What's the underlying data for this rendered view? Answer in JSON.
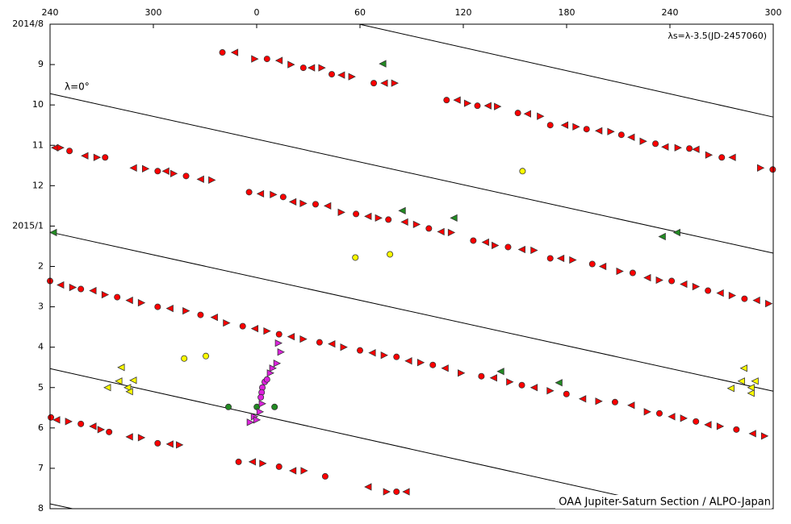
{
  "chart_data": {
    "type": "scatter",
    "annotation": "λs=λ-3.5(JD-2457060)",
    "line_label": "λ=0°",
    "credit": "OAA Jupiter-Saturn Section / ALPO-Japan",
    "xlim": [
      240,
      660
    ],
    "xticks": [
      240,
      300,
      {
        "value": 360,
        "label": "0"
      },
      {
        "value": 420,
        "label": "60"
      },
      {
        "value": 480,
        "label": "120"
      },
      {
        "value": 540,
        "label": "180"
      },
      {
        "value": 600,
        "label": "240"
      },
      {
        "value": 660,
        "label": "300"
      }
    ],
    "ylim": [
      12,
      0
    ],
    "yticks": [
      {
        "value": 0,
        "label": "2014/8"
      },
      {
        "value": 1,
        "label": "9"
      },
      {
        "value": 2,
        "label": "10"
      },
      {
        "value": 3,
        "label": "11"
      },
      {
        "value": 4,
        "label": "12"
      },
      {
        "value": 5,
        "label": "2015/1"
      },
      {
        "value": 6,
        "label": "2"
      },
      {
        "value": 7,
        "label": "3"
      },
      {
        "value": 8,
        "label": "4"
      },
      {
        "value": 9,
        "label": "5"
      },
      {
        "value": 10,
        "label": "6"
      },
      {
        "value": 11,
        "label": "7"
      },
      {
        "value": 12,
        "label": "8"
      }
    ],
    "reference_lines": [
      {
        "x": [
          419.6,
          660
        ],
        "y": [
          0,
          2.3
        ]
      },
      {
        "x": [
          240,
          660
        ],
        "y": [
          1.72,
          5.67
        ]
      },
      {
        "x": [
          240,
          660
        ],
        "y": [
          5.15,
          9.09
        ]
      },
      {
        "x": [
          240,
          604.7
        ],
        "y": [
          8.53,
          12
        ]
      },
      {
        "x": [
          240,
          253
        ],
        "y": [
          11.88,
          12
        ]
      }
    ],
    "series": [
      {
        "color": "#ff0000",
        "marker": "mixed",
        "x": [
          340.1,
          347.2,
          358.9,
          366,
          373,
          380,
          387.1,
          391.8,
          397.9,
          403.6,
          409.2,
          415.3,
          428,
          434.1,
          440.2,
          470.3,
          476.4,
          482.5,
          488.2,
          494.3,
          499.9,
          511.7,
          517.3,
          524.8,
          530.5,
          538.9,
          545.5,
          551.6,
          558.7,
          565.7,
          571.8,
          577.5,
          584.5,
          591.6,
          597.2,
          604.7,
          611.3,
          615.1,
          622.6,
          630.1,
          636.2,
          652.7,
          659.7,
          242.8,
          246.1,
          251.3,
          260.2,
          267.3,
          272,
          288.4,
          295.5,
          302.5,
          307.2,
          311.9,
          319,
          327.4,
          334,
          355.6,
          362.2,
          369.7,
          375.4,
          381,
          387.1,
          394.2,
          401.2,
          409.2,
          417.7,
          424.7,
          430.8,
          436.5,
          445.9,
          452.9,
          460,
          467,
          473.1,
          485.8,
          492.9,
          498.5,
          506,
          514,
          521.1,
          530.5,
          536.6,
          543.6,
          554.9,
          561,
          570.9,
          578.4,
          586.9,
          593.9,
          601,
          608,
          615.1,
          622.1,
          629.2,
          636.2,
          643.3,
          650.3,
          657.4,
          240,
          246.1,
          253.2,
          257.9,
          264.9,
          272,
          279,
          286.1,
          293.1,
          302.5,
          309.6,
          319,
          327.4,
          335.4,
          342.5,
          351.9,
          358.9,
          366,
          373,
          380,
          387.1,
          396.5,
          403.6,
          410.6,
          420,
          427.1,
          434.1,
          441.2,
          448.2,
          455.3,
          462.3,
          469.4,
          478.8,
          490.5,
          497.6,
          507,
          514,
          521.1,
          530.5,
          539.9,
          549.3,
          558.7,
          568.1,
          577.5,
          586.9,
          593.9,
          601,
          608,
          615.1,
          622.1,
          629.2,
          638.6,
          648,
          655,
          240.5,
          243.8,
          250.8,
          257.9,
          264.9,
          269.6,
          274.3,
          286.1,
          293.1,
          302.5,
          309.6,
          315.2,
          349.5,
          357.5,
          363.6,
          373,
          381,
          387.6,
          399.8,
          424.7,
          435.5,
          441.2,
          446.8
        ],
        "values": [
          0.7,
          0.7,
          0.86,
          0.86,
          0.9,
          1,
          1.08,
          1.08,
          1.08,
          1.24,
          1.26,
          1.3,
          1.46,
          1.46,
          1.46,
          1.88,
          1.88,
          1.96,
          2.02,
          2.02,
          2.04,
          2.2,
          2.22,
          2.28,
          2.5,
          2.5,
          2.54,
          2.6,
          2.64,
          2.66,
          2.74,
          2.8,
          2.9,
          2.96,
          3.04,
          3.06,
          3.08,
          3.1,
          3.24,
          3.3,
          3.3,
          3.56,
          3.6,
          3.06,
          3.06,
          3.14,
          3.26,
          3.3,
          3.3,
          3.56,
          3.58,
          3.64,
          3.64,
          3.7,
          3.76,
          3.84,
          3.86,
          4.16,
          4.2,
          4.22,
          4.28,
          4.4,
          4.44,
          4.46,
          4.5,
          4.66,
          4.7,
          4.76,
          4.8,
          4.84,
          4.9,
          4.96,
          5.06,
          5.14,
          5.16,
          5.36,
          5.4,
          5.48,
          5.52,
          5.58,
          5.6,
          5.8,
          5.8,
          5.84,
          5.94,
          6,
          6.12,
          6.16,
          6.28,
          6.34,
          6.36,
          6.44,
          6.5,
          6.6,
          6.66,
          6.72,
          6.8,
          6.84,
          6.92,
          6.36,
          6.46,
          6.52,
          6.56,
          6.6,
          6.7,
          6.76,
          6.84,
          6.9,
          7,
          7.04,
          7.1,
          7.2,
          7.26,
          7.4,
          7.48,
          7.54,
          7.6,
          7.68,
          7.74,
          7.8,
          7.88,
          7.92,
          8,
          8.08,
          8.14,
          8.2,
          8.24,
          8.34,
          8.38,
          8.44,
          8.52,
          8.64,
          8.72,
          8.76,
          8.86,
          8.94,
          9,
          9.08,
          9.16,
          9.28,
          9.34,
          9.36,
          9.44,
          9.6,
          9.64,
          9.72,
          9.76,
          9.84,
          9.92,
          9.96,
          10.04,
          10.14,
          10.2,
          9.74,
          9.8,
          9.84,
          9.9,
          9.96,
          10.04,
          10.1,
          10.22,
          10.24,
          10.38,
          10.4,
          10.42,
          10.84,
          10.84,
          10.88,
          10.96,
          11.06,
          11.06,
          11.2,
          11.46,
          11.58,
          11.58,
          11.58
        ]
      },
      {
        "color": "#ffff00",
        "marker": "circle",
        "x": [
          514.4,
          417.3,
          437.4,
          317.9,
          330.5
        ],
        "values": [
          3.64,
          5.78,
          5.7,
          8.28,
          8.22
        ]
      },
      {
        "color": "#ffff00",
        "marker": "left",
        "x": [
          281.3,
          279.9,
          273.3,
          285,
          288.3,
          286.1,
          642.9,
          641.5,
          635.4,
          647.1,
          649.4,
          647.1
        ],
        "values": [
          8.5,
          8.84,
          9,
          9,
          8.82,
          9.1,
          8.52,
          8.84,
          9.02,
          9,
          8.84,
          9.14
        ]
      },
      {
        "color": "#228b22",
        "marker": "circle",
        "x": [
          343.6,
          360.1,
          370.4
        ],
        "values": [
          9.48,
          9.48,
          9.48
        ]
      },
      {
        "color": "#228b22",
        "marker": "left",
        "x": [
          433.2,
          444.5,
          474.5,
          241.9,
          595.5,
          604,
          501.7,
          535.5
        ],
        "values": [
          0.98,
          4.62,
          4.8,
          5.16,
          5.26,
          5.16,
          8.6,
          8.88
        ]
      },
      {
        "color": "#dd22dd",
        "marker": "circle",
        "x": [
          363.3,
          364.7,
          362.9,
          362.4,
          366
        ],
        "values": [
          9,
          8.86,
          9.12,
          9.24,
          8.8
        ]
      },
      {
        "color": "#dd22dd",
        "marker": "right",
        "x": [
          372.7,
          374.1,
          371.8,
          369.4,
          368,
          363.3,
          362,
          358.7,
          360.1,
          356.3
        ],
        "values": [
          7.9,
          8.12,
          8.4,
          8.52,
          8.64,
          9.4,
          9.6,
          9.72,
          9.8,
          9.86
        ]
      }
    ]
  }
}
